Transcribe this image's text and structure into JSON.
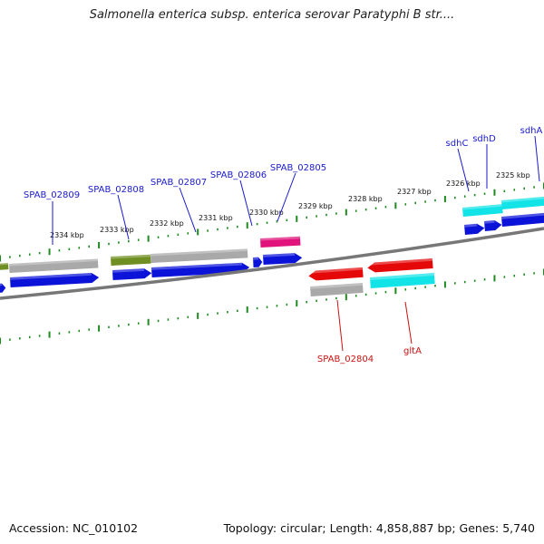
{
  "title": "Salmonella enterica subsp. enterica serovar Paratyphi B str....",
  "footer": {
    "accession": "Accession: NC_010102",
    "info": "Topology: circular; Length: 4,858,887 bp; Genes: 5,740"
  },
  "colors": {
    "forward_label": "#1a1acc",
    "reverse_label": "#cc1111",
    "tick": "#1f8a1f",
    "backbone": "#777777",
    "cds_blue": "#0b13d8",
    "cds_gray": "#a9a9a9",
    "cds_olive": "#6f8f22",
    "cds_magenta": "#e0147a",
    "cds_red": "#e50808",
    "cds_cyan": "#11e3e6"
  },
  "kbp_ticks": [
    "2334 kbp",
    "2333 kbp",
    "2332 kbp",
    "2331 kbp",
    "2330 kbp",
    "2329 kbp",
    "2328 kbp",
    "2327 kbp",
    "2326 kbp",
    "2325 kbp"
  ],
  "genes_forward": [
    "SPAB_02809",
    "SPAB_02808",
    "SPAB_02807",
    "SPAB_02806",
    "SPAB_02805",
    "sdhC",
    "sdhD",
    "sdhA"
  ],
  "genes_reverse": [
    "SPAB_02804",
    "gltA"
  ]
}
